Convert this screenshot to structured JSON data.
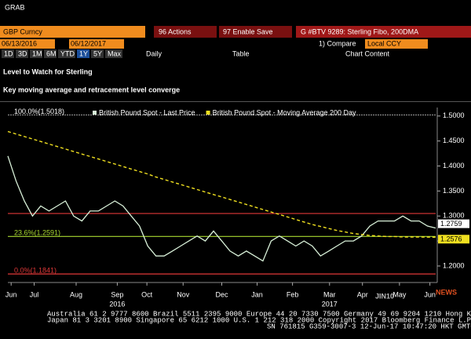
{
  "header": {
    "app": "GRAB",
    "ticker": "GBP Curncy",
    "actions": "96 Actions",
    "save": "97 Enable Save",
    "chart_name": "G #BTV 9289: Sterling Fibo, 200DMA",
    "start_date": "06/13/2016",
    "end_date": "06/12/2017",
    "compare": "1) Compare",
    "currency": "Local CCY",
    "range_buttons": [
      "1D",
      "3D",
      "1M",
      "6M",
      "YTD",
      "1Y",
      "5Y",
      "Max"
    ],
    "frequency": "Daily",
    "table": "Table",
    "content": "Chart Content"
  },
  "chart_data": {
    "type": "line",
    "title": "Level to Watch for Sterling",
    "subtitle": "Key moving average and retracement level converge",
    "x": [
      0,
      1,
      2,
      3,
      4,
      5,
      6,
      7,
      8,
      9,
      10,
      11,
      12,
      13,
      14,
      15,
      16,
      17,
      18,
      19,
      20,
      21,
      22,
      23,
      24,
      25,
      26,
      27,
      28,
      29,
      30,
      31,
      32,
      33,
      34,
      35,
      36,
      37,
      38,
      39,
      40,
      41,
      42,
      43,
      44,
      45,
      46,
      47,
      48,
      49,
      50,
      51,
      52
    ],
    "xlim": [
      0,
      52
    ],
    "xticks": [
      {
        "value": 0.4,
        "label": "Jun"
      },
      {
        "value": 3.2,
        "label": "Jul"
      },
      {
        "value": 8.3,
        "label": "Aug"
      },
      {
        "value": 13.3,
        "label": "Sep"
      },
      {
        "value": 16.9,
        "label": "Oct"
      },
      {
        "value": 21.3,
        "label": "Nov"
      },
      {
        "value": 26.0,
        "label": "Dec"
      },
      {
        "value": 30.3,
        "label": "Jan"
      },
      {
        "value": 34.6,
        "label": "Feb"
      },
      {
        "value": 39.1,
        "label": "Mar"
      },
      {
        "value": 43.1,
        "label": "Apr"
      },
      {
        "value": 47.6,
        "label": "May"
      },
      {
        "value": 51.3,
        "label": "Jun"
      }
    ],
    "years": [
      {
        "value": 13.3,
        "label": "2016"
      },
      {
        "value": 39.1,
        "label": "2017"
      }
    ],
    "ylim": [
      1.167,
      1.517
    ],
    "yticks": [
      {
        "value": 1.5,
        "label": "1.5000"
      },
      {
        "value": 1.45,
        "label": "1.4500"
      },
      {
        "value": 1.4,
        "label": "1.4000"
      },
      {
        "value": 1.35,
        "label": "1.3500"
      },
      {
        "value": 1.3,
        "label": "1.3000"
      },
      {
        "value": 1.25,
        "label": "1.2500"
      },
      {
        "value": 1.2,
        "label": "1.2000"
      }
    ],
    "series": [
      {
        "name": "British Pound Spot - Last Price",
        "color": "#d8f0d8",
        "values": [
          1.42,
          1.37,
          1.33,
          1.3,
          1.32,
          1.31,
          1.32,
          1.33,
          1.3,
          1.29,
          1.31,
          1.31,
          1.32,
          1.33,
          1.32,
          1.3,
          1.28,
          1.24,
          1.22,
          1.22,
          1.23,
          1.24,
          1.25,
          1.26,
          1.25,
          1.27,
          1.25,
          1.23,
          1.22,
          1.23,
          1.22,
          1.21,
          1.25,
          1.26,
          1.25,
          1.24,
          1.25,
          1.24,
          1.22,
          1.23,
          1.24,
          1.25,
          1.25,
          1.26,
          1.28,
          1.29,
          1.29,
          1.29,
          1.3,
          1.29,
          1.29,
          1.28,
          1.2759
        ],
        "last_label": "1.2759"
      },
      {
        "name": "British Pound Spot - Moving Average 200 Day",
        "color": "#f0e020",
        "values": [
          1.469,
          1.464,
          1.459,
          1.454,
          1.449,
          1.444,
          1.439,
          1.434,
          1.429,
          1.424,
          1.419,
          1.414,
          1.409,
          1.404,
          1.399,
          1.394,
          1.389,
          1.384,
          1.378,
          1.373,
          1.368,
          1.363,
          1.358,
          1.353,
          1.348,
          1.343,
          1.338,
          1.333,
          1.328,
          1.323,
          1.318,
          1.313,
          1.308,
          1.303,
          1.298,
          1.293,
          1.288,
          1.283,
          1.279,
          1.275,
          1.271,
          1.268,
          1.265,
          1.263,
          1.261,
          1.26,
          1.259,
          1.259,
          1.258,
          1.258,
          1.258,
          1.2577,
          1.2576
        ],
        "last_label": "1.2576"
      }
    ],
    "levels": [
      {
        "value": 1.5018,
        "label": "100.0%(1.5018)",
        "color": "#ffffff"
      },
      {
        "value": 1.305,
        "color": "#e03838"
      },
      {
        "value": 1.2591,
        "label": "23.6%(1.2591)",
        "color": "#a8d830"
      },
      {
        "value": 1.1841,
        "label": "0.0%(1.1841)",
        "color": "#e03838"
      }
    ],
    "watermark": "JIN10",
    "watermark_tag": "NEWS"
  },
  "footer": {
    "line1": "Australia 61 2 9777 8600 Brazil 5511 2395 9000 Europe 44 20 7330 7500 Germany 49 69 9204 1210 Hong Kong 852 2977 6000",
    "line2": "Japan 81 3 3201 8900      Singapore 65 6212 1000      U.S. 1 212 318 2000      Copyright 2017 Bloomberg Finance L.P.",
    "line3": "SN 761815 G359-3007-3 12-Jun-17 10:47:20 HKT GMT+8:00"
  }
}
